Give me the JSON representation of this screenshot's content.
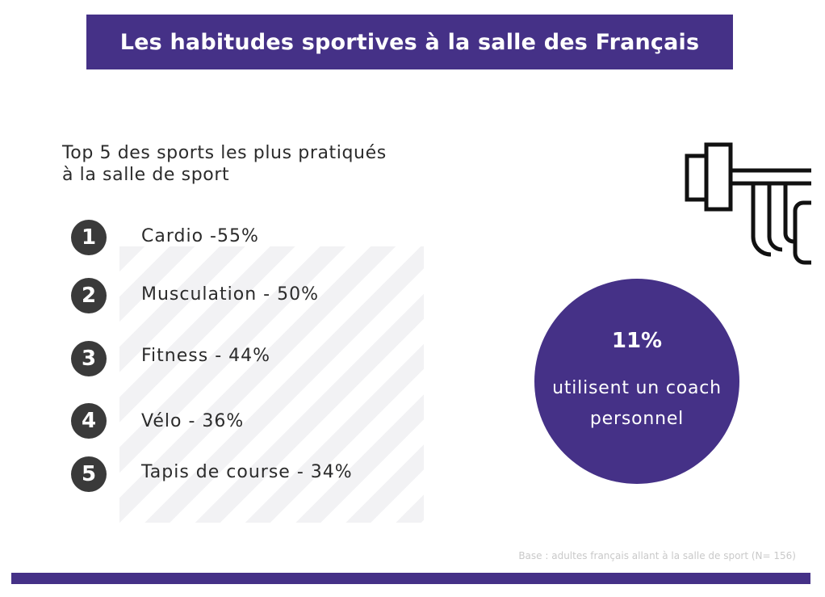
{
  "title": "Les habitudes sportives à la salle des Français",
  "subtitle_lines": [
    "Top 5 des sports les plus pratiqués",
    "à la salle de sport"
  ],
  "ranking": [
    {
      "rank": "1",
      "label": "Cardio -55%"
    },
    {
      "rank": "2",
      "label": "Musculation - 50%"
    },
    {
      "rank": "3",
      "label": "Fitness - 44%"
    },
    {
      "rank": "4",
      "label": "Vélo - 36%"
    },
    {
      "rank": "5",
      "label": "Tapis de course - 34%"
    }
  ],
  "coach": {
    "percent": "11%",
    "text_lines": [
      "utilisent un coach",
      "personnel"
    ]
  },
  "base_note": "Base : adultes français allant à la salle de sport (N= 156)",
  "icons": {
    "equipment": "barbell-icon"
  },
  "colors": {
    "accent": "#453187",
    "rank_circle": "#3a3a3a",
    "text": "#2b2b2b",
    "stripe": "#f2f2f4",
    "note": "#c9c9c9"
  }
}
